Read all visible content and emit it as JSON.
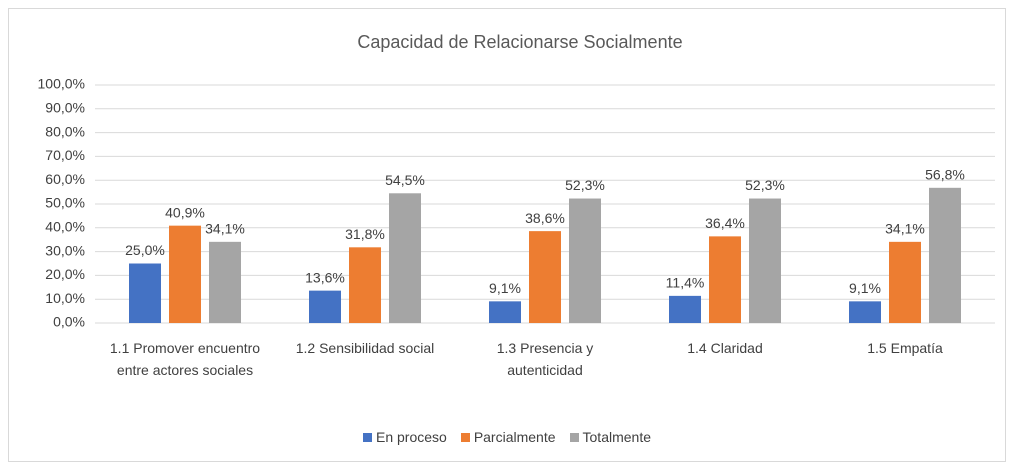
{
  "chart_data": {
    "type": "bar",
    "title": "Capacidad de Relacionarse Socialmente",
    "categories": [
      "1.1 Promover encuentro entre actores sociales",
      "1.2 Sensibilidad social",
      "1.3 Presencia y autenticidad",
      "1.4 Claridad",
      "1.5 Empatía"
    ],
    "series": [
      {
        "name": "En proceso",
        "color": "#4472c4",
        "values": [
          25.0,
          13.6,
          9.1,
          11.4,
          9.1
        ],
        "value_labels": [
          "25,0%",
          "13,6%",
          "9,1%",
          "11,4%",
          "9,1%"
        ]
      },
      {
        "name": "Parcialmente",
        "color": "#ed7d31",
        "values": [
          40.9,
          31.8,
          38.6,
          36.4,
          34.1
        ],
        "value_labels": [
          "40,9%",
          "31,8%",
          "38,6%",
          "36,4%",
          "34,1%"
        ]
      },
      {
        "name": "Totalmente",
        "color": "#a5a5a5",
        "values": [
          34.1,
          54.5,
          52.3,
          52.3,
          56.8
        ],
        "value_labels": [
          "34,1%",
          "54,5%",
          "52,3%",
          "52,3%",
          "56,8%"
        ]
      }
    ],
    "ylim": [
      0,
      100
    ],
    "yticks": [
      {
        "value": 0,
        "label": "0,0%"
      },
      {
        "value": 10,
        "label": "10,0%"
      },
      {
        "value": 20,
        "label": "20,0%"
      },
      {
        "value": 30,
        "label": "30,0%"
      },
      {
        "value": 40,
        "label": "40,0%"
      },
      {
        "value": 50,
        "label": "50,0%"
      },
      {
        "value": 60,
        "label": "60,0%"
      },
      {
        "value": 70,
        "label": "70,0%"
      },
      {
        "value": 80,
        "label": "80,0%"
      },
      {
        "value": 90,
        "label": "90,0%"
      },
      {
        "value": 100,
        "label": "100,0%"
      }
    ],
    "grid": true,
    "legend": "bottom"
  }
}
